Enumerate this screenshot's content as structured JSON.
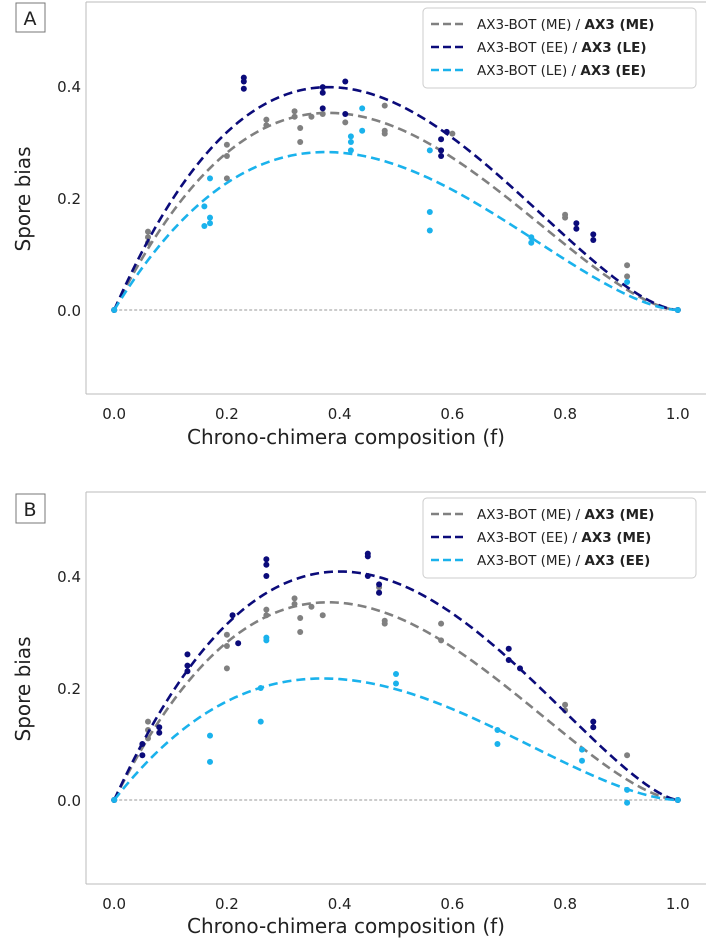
{
  "chart_data": [
    {
      "panel_label": "A",
      "type": "scatter",
      "xlabel": "Chrono-chimera composition (f)",
      "ylabel": "Spore  bias",
      "xlim": [
        -0.05,
        1.05
      ],
      "ylim": [
        -0.15,
        0.55
      ],
      "x_ticks": [
        "0.0",
        "0.2",
        "0.4",
        "0.6",
        "0.8",
        "1.0"
      ],
      "y_ticks": [
        "0.0",
        "0.2",
        "0.4"
      ],
      "reference_line_y": 0,
      "legend_position": "top-right",
      "series": [
        {
          "name_plain": "AX3-BOT (ME) / ",
          "name_bold": "AX3 (ME)",
          "color": "#808080",
          "fit_peak": [
            0.38,
            0.352
          ],
          "points": [
            [
              0.0,
              0.0
            ],
            [
              0.06,
              0.14
            ],
            [
              0.06,
              0.13
            ],
            [
              0.06,
              0.12
            ],
            [
              0.2,
              0.295
            ],
            [
              0.2,
              0.275
            ],
            [
              0.2,
              0.235
            ],
            [
              0.27,
              0.34
            ],
            [
              0.27,
              0.33
            ],
            [
              0.32,
              0.355
            ],
            [
              0.32,
              0.345
            ],
            [
              0.33,
              0.325
            ],
            [
              0.33,
              0.3
            ],
            [
              0.35,
              0.345
            ],
            [
              0.37,
              0.35
            ],
            [
              0.41,
              0.335
            ],
            [
              0.48,
              0.315
            ],
            [
              0.48,
              0.32
            ],
            [
              0.48,
              0.365
            ],
            [
              0.58,
              0.285
            ],
            [
              0.6,
              0.315
            ],
            [
              0.8,
              0.165
            ],
            [
              0.8,
              0.17
            ],
            [
              0.91,
              0.08
            ],
            [
              0.91,
              0.06
            ],
            [
              1.0,
              0.0
            ]
          ]
        },
        {
          "name_plain": "AX3-BOT (EE) / ",
          "name_bold": "AX3 (LE)",
          "color": "#0b0b7a",
          "fit_peak": [
            0.38,
            0.398
          ],
          "points": [
            [
              0.0,
              0.0
            ],
            [
              0.23,
              0.415
            ],
            [
              0.23,
              0.408
            ],
            [
              0.23,
              0.395
            ],
            [
              0.37,
              0.398
            ],
            [
              0.37,
              0.388
            ],
            [
              0.37,
              0.36
            ],
            [
              0.41,
              0.408
            ],
            [
              0.41,
              0.35
            ],
            [
              0.58,
              0.275
            ],
            [
              0.58,
              0.285
            ],
            [
              0.58,
              0.305
            ],
            [
              0.59,
              0.318
            ],
            [
              0.82,
              0.155
            ],
            [
              0.82,
              0.145
            ],
            [
              0.85,
              0.135
            ],
            [
              0.85,
              0.125
            ],
            [
              1.0,
              0.0
            ]
          ]
        },
        {
          "name_plain": "AX3-BOT (LE) / ",
          "name_bold": "AX3 (EE)",
          "color": "#1ab2ec",
          "fit_peak": [
            0.375,
            0.282
          ],
          "points": [
            [
              0.0,
              0.0
            ],
            [
              0.16,
              0.185
            ],
            [
              0.16,
              0.15
            ],
            [
              0.17,
              0.165
            ],
            [
              0.17,
              0.155
            ],
            [
              0.17,
              0.235
            ],
            [
              0.42,
              0.31
            ],
            [
              0.42,
              0.3
            ],
            [
              0.42,
              0.285
            ],
            [
              0.44,
              0.36
            ],
            [
              0.44,
              0.32
            ],
            [
              0.56,
              0.285
            ],
            [
              0.56,
              0.175
            ],
            [
              0.56,
              0.142
            ],
            [
              0.74,
              0.13
            ],
            [
              0.74,
              0.12
            ],
            [
              0.91,
              0.05
            ],
            [
              1.0,
              0.0
            ]
          ]
        }
      ]
    },
    {
      "panel_label": "B",
      "type": "scatter",
      "xlabel": "Chrono-chimera composition (f)",
      "ylabel": "Spore  bias",
      "xlim": [
        -0.05,
        1.05
      ],
      "ylim": [
        -0.15,
        0.55
      ],
      "x_ticks": [
        "0.0",
        "0.2",
        "0.4",
        "0.6",
        "0.8",
        "1.0"
      ],
      "y_ticks": [
        "0.0",
        "0.2",
        "0.4"
      ],
      "reference_line_y": 0,
      "legend_position": "top-right",
      "series": [
        {
          "name_plain": "AX3-BOT (ME) / ",
          "name_bold": "AX3 (ME)",
          "color": "#808080",
          "fit_peak": [
            0.38,
            0.353
          ],
          "points": [
            [
              0.0,
              0.0
            ],
            [
              0.06,
              0.14
            ],
            [
              0.06,
              0.125
            ],
            [
              0.06,
              0.11
            ],
            [
              0.2,
              0.295
            ],
            [
              0.2,
              0.275
            ],
            [
              0.2,
              0.235
            ],
            [
              0.27,
              0.34
            ],
            [
              0.27,
              0.33
            ],
            [
              0.32,
              0.36
            ],
            [
              0.32,
              0.35
            ],
            [
              0.33,
              0.325
            ],
            [
              0.33,
              0.3
            ],
            [
              0.35,
              0.345
            ],
            [
              0.37,
              0.33
            ],
            [
              0.47,
              0.37
            ],
            [
              0.47,
              0.38
            ],
            [
              0.48,
              0.32
            ],
            [
              0.48,
              0.315
            ],
            [
              0.58,
              0.315
            ],
            [
              0.58,
              0.285
            ],
            [
              0.8,
              0.17
            ],
            [
              0.8,
              0.16
            ],
            [
              0.91,
              0.08
            ],
            [
              1.0,
              0.0
            ]
          ]
        },
        {
          "name_plain": "AX3-BOT (EE) / ",
          "name_bold": "AX3 (ME)",
          "color": "#0b0b7a",
          "fit_peak": [
            0.4,
            0.408
          ],
          "points": [
            [
              0.0,
              0.0
            ],
            [
              0.05,
              0.1
            ],
            [
              0.05,
              0.08
            ],
            [
              0.08,
              0.13
            ],
            [
              0.08,
              0.12
            ],
            [
              0.13,
              0.26
            ],
            [
              0.13,
              0.24
            ],
            [
              0.13,
              0.23
            ],
            [
              0.21,
              0.33
            ],
            [
              0.22,
              0.28
            ],
            [
              0.27,
              0.43
            ],
            [
              0.27,
              0.42
            ],
            [
              0.27,
              0.4
            ],
            [
              0.45,
              0.44
            ],
            [
              0.45,
              0.435
            ],
            [
              0.45,
              0.4
            ],
            [
              0.47,
              0.385
            ],
            [
              0.47,
              0.37
            ],
            [
              0.7,
              0.27
            ],
            [
              0.7,
              0.25
            ],
            [
              0.72,
              0.235
            ],
            [
              0.85,
              0.14
            ],
            [
              0.85,
              0.13
            ],
            [
              1.0,
              0.0
            ]
          ]
        },
        {
          "name_plain": "AX3-BOT (ME) / ",
          "name_bold": "AX3 (EE)",
          "color": "#1ab2ec",
          "fit_peak": [
            0.37,
            0.217
          ],
          "points": [
            [
              0.0,
              0.0
            ],
            [
              0.17,
              0.115
            ],
            [
              0.17,
              0.068
            ],
            [
              0.26,
              0.2
            ],
            [
              0.26,
              0.14
            ],
            [
              0.27,
              0.29
            ],
            [
              0.27,
              0.285
            ],
            [
              0.5,
              0.225
            ],
            [
              0.5,
              0.208
            ],
            [
              0.68,
              0.125
            ],
            [
              0.68,
              0.1
            ],
            [
              0.83,
              0.09
            ],
            [
              0.83,
              0.07
            ],
            [
              0.91,
              0.018
            ],
            [
              0.91,
              -0.005
            ],
            [
              1.0,
              0.0
            ]
          ]
        }
      ]
    }
  ]
}
